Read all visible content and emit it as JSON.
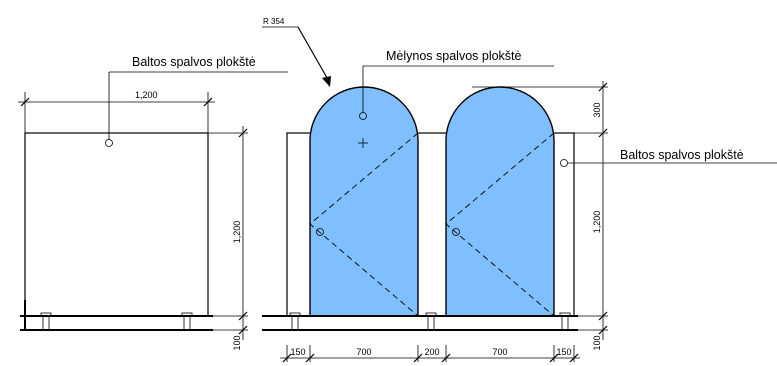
{
  "labels": {
    "white_panel_left": "Baltos spalvos plokštė",
    "blue_panel": "Mėlynos spalvos plokštė",
    "white_panel_right": "Baltos spalvos plokštė",
    "radius": "R 354"
  },
  "dimensions": {
    "left_width": "1,200",
    "left_height": "1,200",
    "left_base": "100",
    "right_top": "300",
    "right_height": "1,200",
    "right_base": "100",
    "bottom_150_left": "150",
    "bottom_700_left": "700",
    "bottom_200": "200",
    "bottom_700_right": "700",
    "bottom_150_right": "150"
  },
  "colors": {
    "blue_panel": "#7fbfff"
  }
}
